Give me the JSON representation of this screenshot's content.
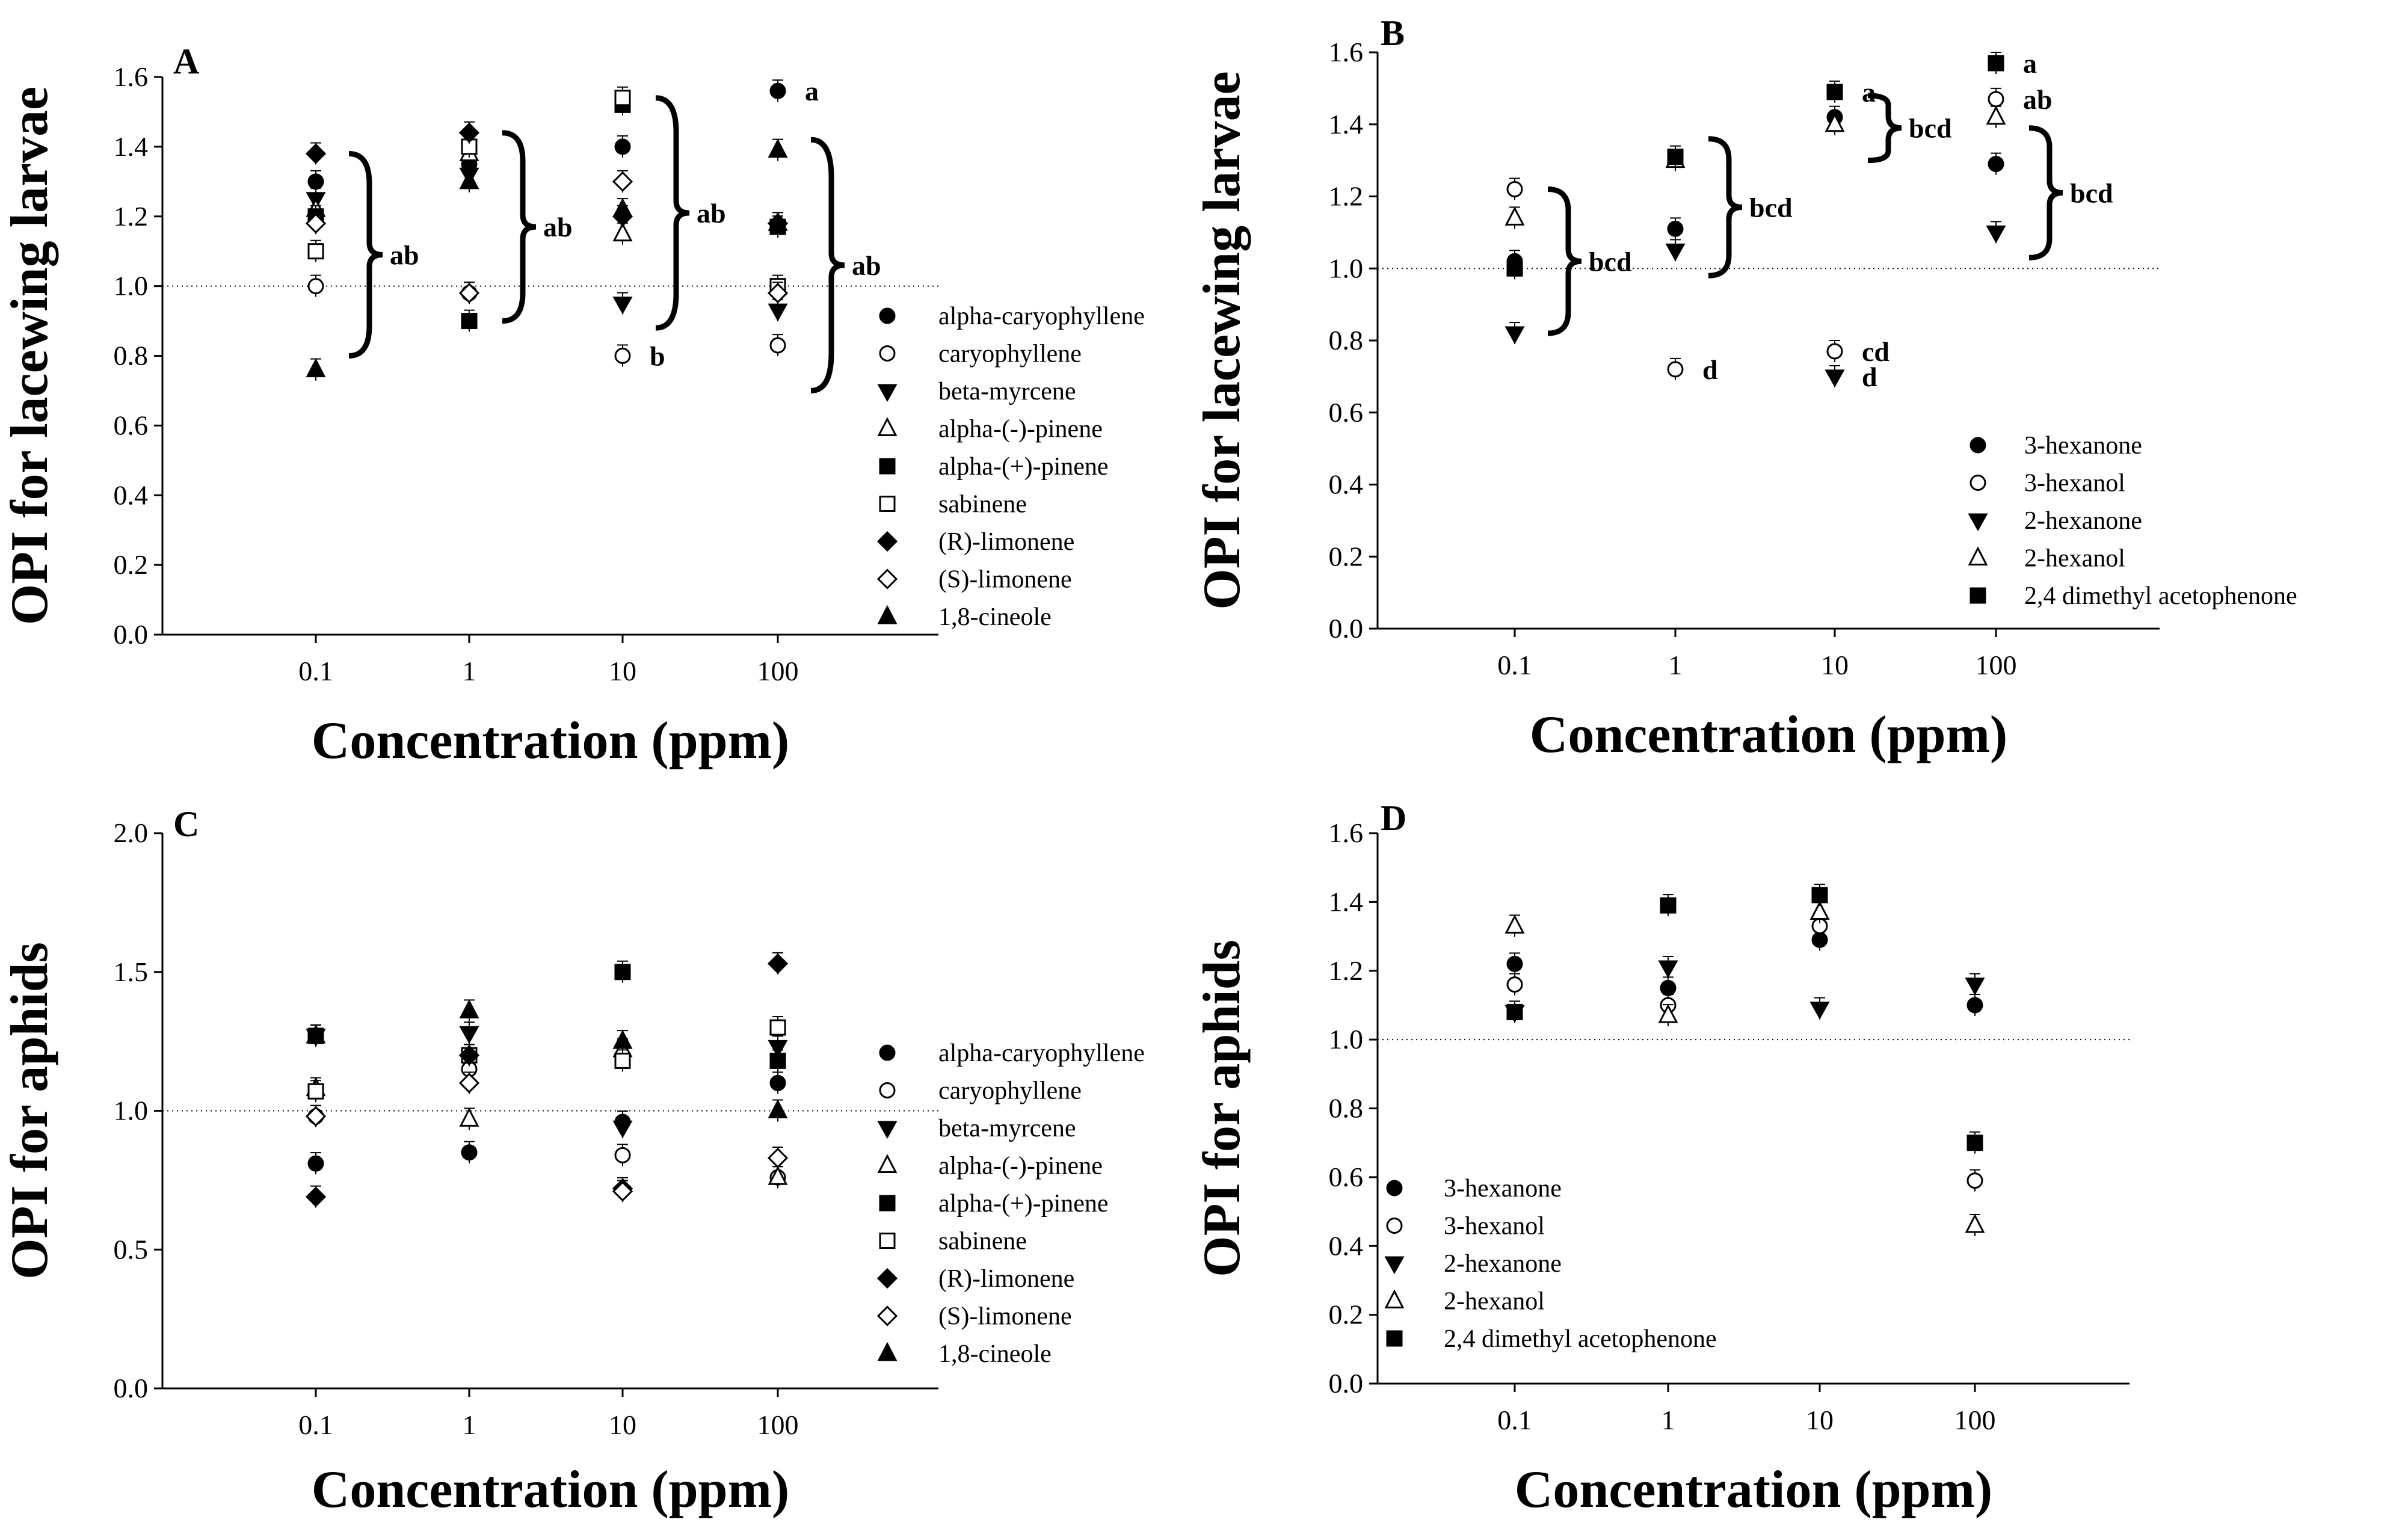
{
  "chart_data": [
    {
      "panel": "A",
      "type": "scatter",
      "xlabel": "Concentration (ppm)",
      "ylabel": "OPI for lacewing larvae",
      "x_ticks": [
        "0.1",
        "1",
        "10",
        "100"
      ],
      "y_ticks": [
        "0.0",
        "0.2",
        "0.4",
        "0.6",
        "0.8",
        "1.0",
        "1.2",
        "1.4",
        "1.6"
      ],
      "ylim": [
        0,
        1.6
      ],
      "reference_y": 1.0,
      "series": [
        {
          "name": "alpha-caryophyllene",
          "marker": "circle-filled",
          "values": [
            1.3,
            1.35,
            1.4,
            1.56
          ]
        },
        {
          "name": "caryophyllene",
          "marker": "circle-open",
          "values": [
            1.0,
            0.98,
            0.8,
            0.83
          ]
        },
        {
          "name": "beta-myrcene",
          "marker": "triangle-down-filled",
          "values": [
            1.25,
            1.32,
            0.95,
            0.93
          ]
        },
        {
          "name": "alpha-(-)-pinene",
          "marker": "triangle-open",
          "values": [
            1.22,
            1.38,
            1.15,
            1.18
          ]
        },
        {
          "name": "alpha-(+)-pinene",
          "marker": "square-filled",
          "values": [
            1.2,
            0.9,
            1.52,
            1.17
          ]
        },
        {
          "name": "sabinene",
          "marker": "square-open",
          "values": [
            1.1,
            1.4,
            1.54,
            1.0
          ]
        },
        {
          "name": "(R)-limonene",
          "marker": "diamond-filled",
          "values": [
            1.38,
            1.44,
            1.2,
            1.18
          ]
        },
        {
          "name": "(S)-limonene",
          "marker": "diamond-open",
          "values": [
            1.18,
            0.98,
            1.3,
            0.98
          ]
        },
        {
          "name": "1,8-cineole",
          "marker": "triangle-up-filled",
          "values": [
            0.76,
            1.3,
            1.22,
            1.39
          ]
        }
      ],
      "annotations": [
        {
          "text": "ab",
          "x": "0.1",
          "y_range": [
            0.8,
            1.38
          ]
        },
        {
          "text": "ab",
          "x": "1",
          "y_range": [
            0.9,
            1.44
          ]
        },
        {
          "text": "ab",
          "x": "10",
          "y_range": [
            0.88,
            1.54
          ]
        },
        {
          "text": "b",
          "x": "10",
          "y": 0.8
        },
        {
          "text": "a",
          "x": "100",
          "y": 1.56
        },
        {
          "text": "ab",
          "x": "100",
          "y_range": [
            0.7,
            1.42
          ]
        }
      ]
    },
    {
      "panel": "B",
      "type": "scatter",
      "xlabel": "Concentration (ppm)",
      "ylabel": "OPI for lacewing larvae",
      "x_ticks": [
        "0.1",
        "1",
        "10",
        "100"
      ],
      "y_ticks": [
        "0.0",
        "0.2",
        "0.4",
        "0.6",
        "0.8",
        "1.0",
        "1.2",
        "1.4",
        "1.6"
      ],
      "ylim": [
        0,
        1.6
      ],
      "reference_y": 1.0,
      "series": [
        {
          "name": "3-hexanone",
          "marker": "circle-filled",
          "values": [
            1.02,
            1.11,
            1.42,
            1.29
          ]
        },
        {
          "name": "3-hexanol",
          "marker": "circle-open",
          "values": [
            1.22,
            0.72,
            0.77,
            1.47
          ]
        },
        {
          "name": "2-hexanone",
          "marker": "triangle-down-filled",
          "values": [
            0.82,
            1.05,
            0.7,
            1.1
          ]
        },
        {
          "name": "2-hexanol",
          "marker": "triangle-open",
          "values": [
            1.14,
            1.3,
            1.4,
            1.42
          ]
        },
        {
          "name": "2,4 dimethyl acetophenone",
          "marker": "square-filled",
          "values": [
            1.0,
            1.31,
            1.49,
            1.57
          ]
        }
      ],
      "annotations": [
        {
          "text": "bcd",
          "x": "0.1",
          "y_range": [
            0.82,
            1.22
          ]
        },
        {
          "text": "bcd",
          "x": "1",
          "y_range": [
            0.98,
            1.36
          ]
        },
        {
          "text": "d",
          "x": "1",
          "y": 0.72
        },
        {
          "text": "a",
          "x": "10",
          "y": 1.49
        },
        {
          "text": "bcd",
          "x": "10",
          "y_range": [
            1.3,
            1.48
          ]
        },
        {
          "text": "cd",
          "x": "10",
          "y": 0.77
        },
        {
          "text": "d",
          "x": "10",
          "y": 0.7
        },
        {
          "text": "a",
          "x": "100",
          "y": 1.57
        },
        {
          "text": "ab",
          "x": "100",
          "y": 1.47
        },
        {
          "text": "bcd",
          "x": "100",
          "y_range": [
            1.03,
            1.39
          ]
        }
      ]
    },
    {
      "panel": "C",
      "type": "scatter",
      "xlabel": "Concentration (ppm)",
      "ylabel": "OPI for aphids",
      "x_ticks": [
        "0.1",
        "1",
        "10",
        "100"
      ],
      "y_ticks": [
        "0.0",
        "0.5",
        "1.0",
        "1.5",
        "2.0"
      ],
      "ylim": [
        0,
        2.0
      ],
      "reference_y": 1.0,
      "series": [
        {
          "name": "alpha-caryophyllene",
          "marker": "circle-filled",
          "values": [
            0.81,
            0.85,
            0.96,
            1.1
          ]
        },
        {
          "name": "caryophyllene",
          "marker": "circle-open",
          "values": [
            0.98,
            1.15,
            0.84,
            0.76
          ]
        },
        {
          "name": "beta-myrcene",
          "marker": "triangle-down-filled",
          "values": [
            1.27,
            1.28,
            0.94,
            1.23
          ]
        },
        {
          "name": "alpha-(-)-pinene",
          "marker": "triangle-open",
          "values": [
            1.08,
            0.97,
            1.22,
            0.76
          ]
        },
        {
          "name": "alpha-(+)-pinene",
          "marker": "square-filled",
          "values": [
            1.27,
            1.2,
            1.5,
            1.18
          ]
        },
        {
          "name": "sabinene",
          "marker": "square-open",
          "values": [
            1.07,
            1.2,
            1.18,
            1.3
          ]
        },
        {
          "name": "(R)-limonene",
          "marker": "diamond-filled",
          "values": [
            0.69,
            1.2,
            0.72,
            1.53
          ]
        },
        {
          "name": "(S)-limonene",
          "marker": "diamond-open",
          "values": [
            0.98,
            1.1,
            0.71,
            0.83
          ]
        },
        {
          "name": "1,8-cineole",
          "marker": "triangle-up-filled",
          "values": [
            1.27,
            1.36,
            1.25,
            1.0
          ]
        }
      ]
    },
    {
      "panel": "D",
      "type": "scatter",
      "xlabel": "Concentration (ppm)",
      "ylabel": "OPI for aphids",
      "x_ticks": [
        "0.1",
        "1",
        "10",
        "100"
      ],
      "y_ticks": [
        "0.0",
        "0.2",
        "0.4",
        "0.6",
        "0.8",
        "1.0",
        "1.2",
        "1.4",
        "1.6"
      ],
      "ylim": [
        0,
        1.6
      ],
      "reference_y": 1.0,
      "series": [
        {
          "name": "3-hexanone",
          "marker": "circle-filled",
          "values": [
            1.22,
            1.15,
            1.29,
            1.1
          ]
        },
        {
          "name": "3-hexanol",
          "marker": "circle-open",
          "values": [
            1.16,
            1.1,
            1.33,
            0.59
          ]
        },
        {
          "name": "2-hexanone",
          "marker": "triangle-down-filled",
          "values": [
            1.08,
            1.21,
            1.09,
            1.16
          ]
        },
        {
          "name": "2-hexanol",
          "marker": "triangle-open",
          "values": [
            1.33,
            1.07,
            1.37,
            0.46
          ]
        },
        {
          "name": "2,4 dimethyl acetophenone",
          "marker": "square-filled",
          "values": [
            1.08,
            1.39,
            1.42,
            0.7
          ]
        }
      ]
    }
  ]
}
